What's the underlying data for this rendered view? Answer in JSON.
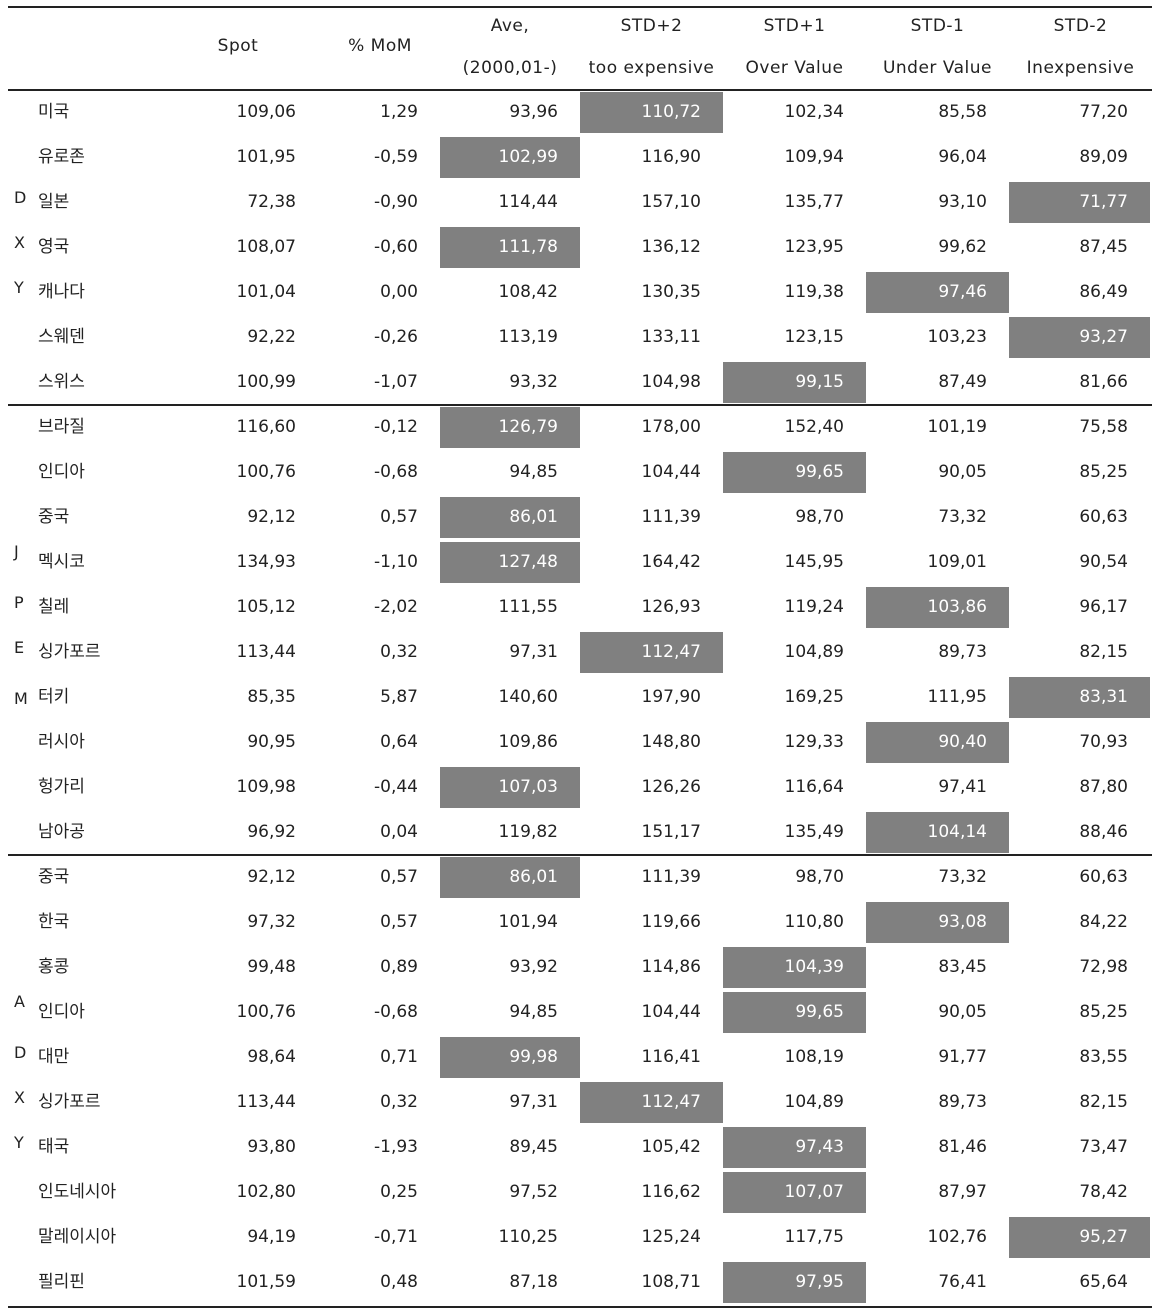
{
  "headers": {
    "spot": "Spot",
    "mom": "% MoM",
    "ave_1": "Ave,",
    "ave_2": "(2000,01-)",
    "std_p2_1": "STD+2",
    "std_p2_2": "too expensive",
    "std_p1_1": "STD+1",
    "std_p1_2": "Over Value",
    "std_m1_1": "STD-1",
    "std_m1_2": "Under Value",
    "std_m2_1": "STD-2",
    "std_m2_2": "Inexpensive"
  },
  "highlight_color": "#808080",
  "groups": [
    {
      "side_labels": [
        {
          "row": 2,
          "text": "D"
        },
        {
          "row": 3,
          "text": "X"
        },
        {
          "row": 4,
          "text": "Y"
        }
      ],
      "rows": [
        {
          "name": "미국",
          "spot": "109,06",
          "mom": "1,29",
          "ave": "93,96",
          "p2": "110,72",
          "p1": "102,34",
          "m1": "85,58",
          "m2": "77,20",
          "hl": "p2"
        },
        {
          "name": "유로존",
          "spot": "101,95",
          "mom": "-0,59",
          "ave": "102,99",
          "p2": "116,90",
          "p1": "109,94",
          "m1": "96,04",
          "m2": "89,09",
          "hl": "ave"
        },
        {
          "name": "일본",
          "spot": "72,38",
          "mom": "-0,90",
          "ave": "114,44",
          "p2": "157,10",
          "p1": "135,77",
          "m1": "93,10",
          "m2": "71,77",
          "hl": "m2"
        },
        {
          "name": "영국",
          "spot": "108,07",
          "mom": "-0,60",
          "ave": "111,78",
          "p2": "136,12",
          "p1": "123,95",
          "m1": "99,62",
          "m2": "87,45",
          "hl": "ave"
        },
        {
          "name": "캐나다",
          "spot": "101,04",
          "mom": "0,00",
          "ave": "108,42",
          "p2": "130,35",
          "p1": "119,38",
          "m1": "97,46",
          "m2": "86,49",
          "hl": "m1"
        },
        {
          "name": "스웨덴",
          "spot": "92,22",
          "mom": "-0,26",
          "ave": "113,19",
          "p2": "133,11",
          "p1": "123,15",
          "m1": "103,23",
          "m2": "93,27",
          "hl": "m2"
        },
        {
          "name": "스위스",
          "spot": "100,99",
          "mom": "-1,07",
          "ave": "93,32",
          "p2": "104,98",
          "p1": "99,15",
          "m1": "87,49",
          "m2": "81,66",
          "hl": "p1"
        }
      ]
    },
    {
      "side_labels": [
        {
          "row": 3,
          "text": "J"
        },
        {
          "row": 4,
          "text": "P"
        },
        {
          "row": 5,
          "text": "E"
        },
        {
          "row": 6,
          "text": "M"
        }
      ],
      "rows": [
        {
          "name": "브라질",
          "spot": "116,60",
          "mom": "-0,12",
          "ave": "126,79",
          "p2": "178,00",
          "p1": "152,40",
          "m1": "101,19",
          "m2": "75,58",
          "hl": "ave"
        },
        {
          "name": "인디아",
          "spot": "100,76",
          "mom": "-0,68",
          "ave": "94,85",
          "p2": "104,44",
          "p1": "99,65",
          "m1": "90,05",
          "m2": "85,25",
          "hl": "p1"
        },
        {
          "name": "중국",
          "spot": "92,12",
          "mom": "0,57",
          "ave": "86,01",
          "p2": "111,39",
          "p1": "98,70",
          "m1": "73,32",
          "m2": "60,63",
          "hl": "ave"
        },
        {
          "name": "멕시코",
          "spot": "134,93",
          "mom": "-1,10",
          "ave": "127,48",
          "p2": "164,42",
          "p1": "145,95",
          "m1": "109,01",
          "m2": "90,54",
          "hl": "ave"
        },
        {
          "name": "칠레",
          "spot": "105,12",
          "mom": "-2,02",
          "ave": "111,55",
          "p2": "126,93",
          "p1": "119,24",
          "m1": "103,86",
          "m2": "96,17",
          "hl": "m1"
        },
        {
          "name": "싱가포르",
          "spot": "113,44",
          "mom": "0,32",
          "ave": "97,31",
          "p2": "112,47",
          "p1": "104,89",
          "m1": "89,73",
          "m2": "82,15",
          "hl": "p2"
        },
        {
          "name": "터키",
          "spot": "85,35",
          "mom": "5,87",
          "ave": "140,60",
          "p2": "197,90",
          "p1": "169,25",
          "m1": "111,95",
          "m2": "83,31",
          "hl": "m2"
        },
        {
          "name": "러시아",
          "spot": "90,95",
          "mom": "0,64",
          "ave": "109,86",
          "p2": "148,80",
          "p1": "129,33",
          "m1": "90,40",
          "m2": "70,93",
          "hl": "m1"
        },
        {
          "name": "헝가리",
          "spot": "109,98",
          "mom": "-0,44",
          "ave": "107,03",
          "p2": "126,26",
          "p1": "116,64",
          "m1": "97,41",
          "m2": "87,80",
          "hl": "ave"
        },
        {
          "name": "남아공",
          "spot": "96,92",
          "mom": "0,04",
          "ave": "119,82",
          "p2": "151,17",
          "p1": "135,49",
          "m1": "104,14",
          "m2": "88,46",
          "hl": "m1"
        }
      ]
    },
    {
      "side_labels": [
        {
          "row": 3,
          "text": "A"
        },
        {
          "row": 4,
          "text": "D"
        },
        {
          "row": 5,
          "text": "X"
        },
        {
          "row": 6,
          "text": "Y"
        }
      ],
      "rows": [
        {
          "name": "중국",
          "spot": "92,12",
          "mom": "0,57",
          "ave": "86,01",
          "p2": "111,39",
          "p1": "98,70",
          "m1": "73,32",
          "m2": "60,63",
          "hl": "ave"
        },
        {
          "name": "한국",
          "spot": "97,32",
          "mom": "0,57",
          "ave": "101,94",
          "p2": "119,66",
          "p1": "110,80",
          "m1": "93,08",
          "m2": "84,22",
          "hl": "m1"
        },
        {
          "name": "홍콩",
          "spot": "99,48",
          "mom": "0,89",
          "ave": "93,92",
          "p2": "114,86",
          "p1": "104,39",
          "m1": "83,45",
          "m2": "72,98",
          "hl": "p1"
        },
        {
          "name": "인디아",
          "spot": "100,76",
          "mom": "-0,68",
          "ave": "94,85",
          "p2": "104,44",
          "p1": "99,65",
          "m1": "90,05",
          "m2": "85,25",
          "hl": "p1"
        },
        {
          "name": "대만",
          "spot": "98,64",
          "mom": "0,71",
          "ave": "99,98",
          "p2": "116,41",
          "p1": "108,19",
          "m1": "91,77",
          "m2": "83,55",
          "hl": "ave"
        },
        {
          "name": "싱가포르",
          "spot": "113,44",
          "mom": "0,32",
          "ave": "97,31",
          "p2": "112,47",
          "p1": "104,89",
          "m1": "89,73",
          "m2": "82,15",
          "hl": "p2"
        },
        {
          "name": "태국",
          "spot": "93,80",
          "mom": "-1,93",
          "ave": "89,45",
          "p2": "105,42",
          "p1": "97,43",
          "m1": "81,46",
          "m2": "73,47",
          "hl": "p1"
        },
        {
          "name": "인도네시아",
          "spot": "102,80",
          "mom": "0,25",
          "ave": "97,52",
          "p2": "116,62",
          "p1": "107,07",
          "m1": "87,97",
          "m2": "78,42",
          "hl": "p1"
        },
        {
          "name": "말레이시아",
          "spot": "94,19",
          "mom": "-0,71",
          "ave": "110,25",
          "p2": "125,24",
          "p1": "117,75",
          "m1": "102,76",
          "m2": "95,27",
          "hl": "m2"
        },
        {
          "name": "필리핀",
          "spot": "101,59",
          "mom": "0,48",
          "ave": "87,18",
          "p2": "108,71",
          "p1": "97,95",
          "m1": "76,41",
          "m2": "65,64",
          "hl": "p1"
        }
      ]
    }
  ]
}
